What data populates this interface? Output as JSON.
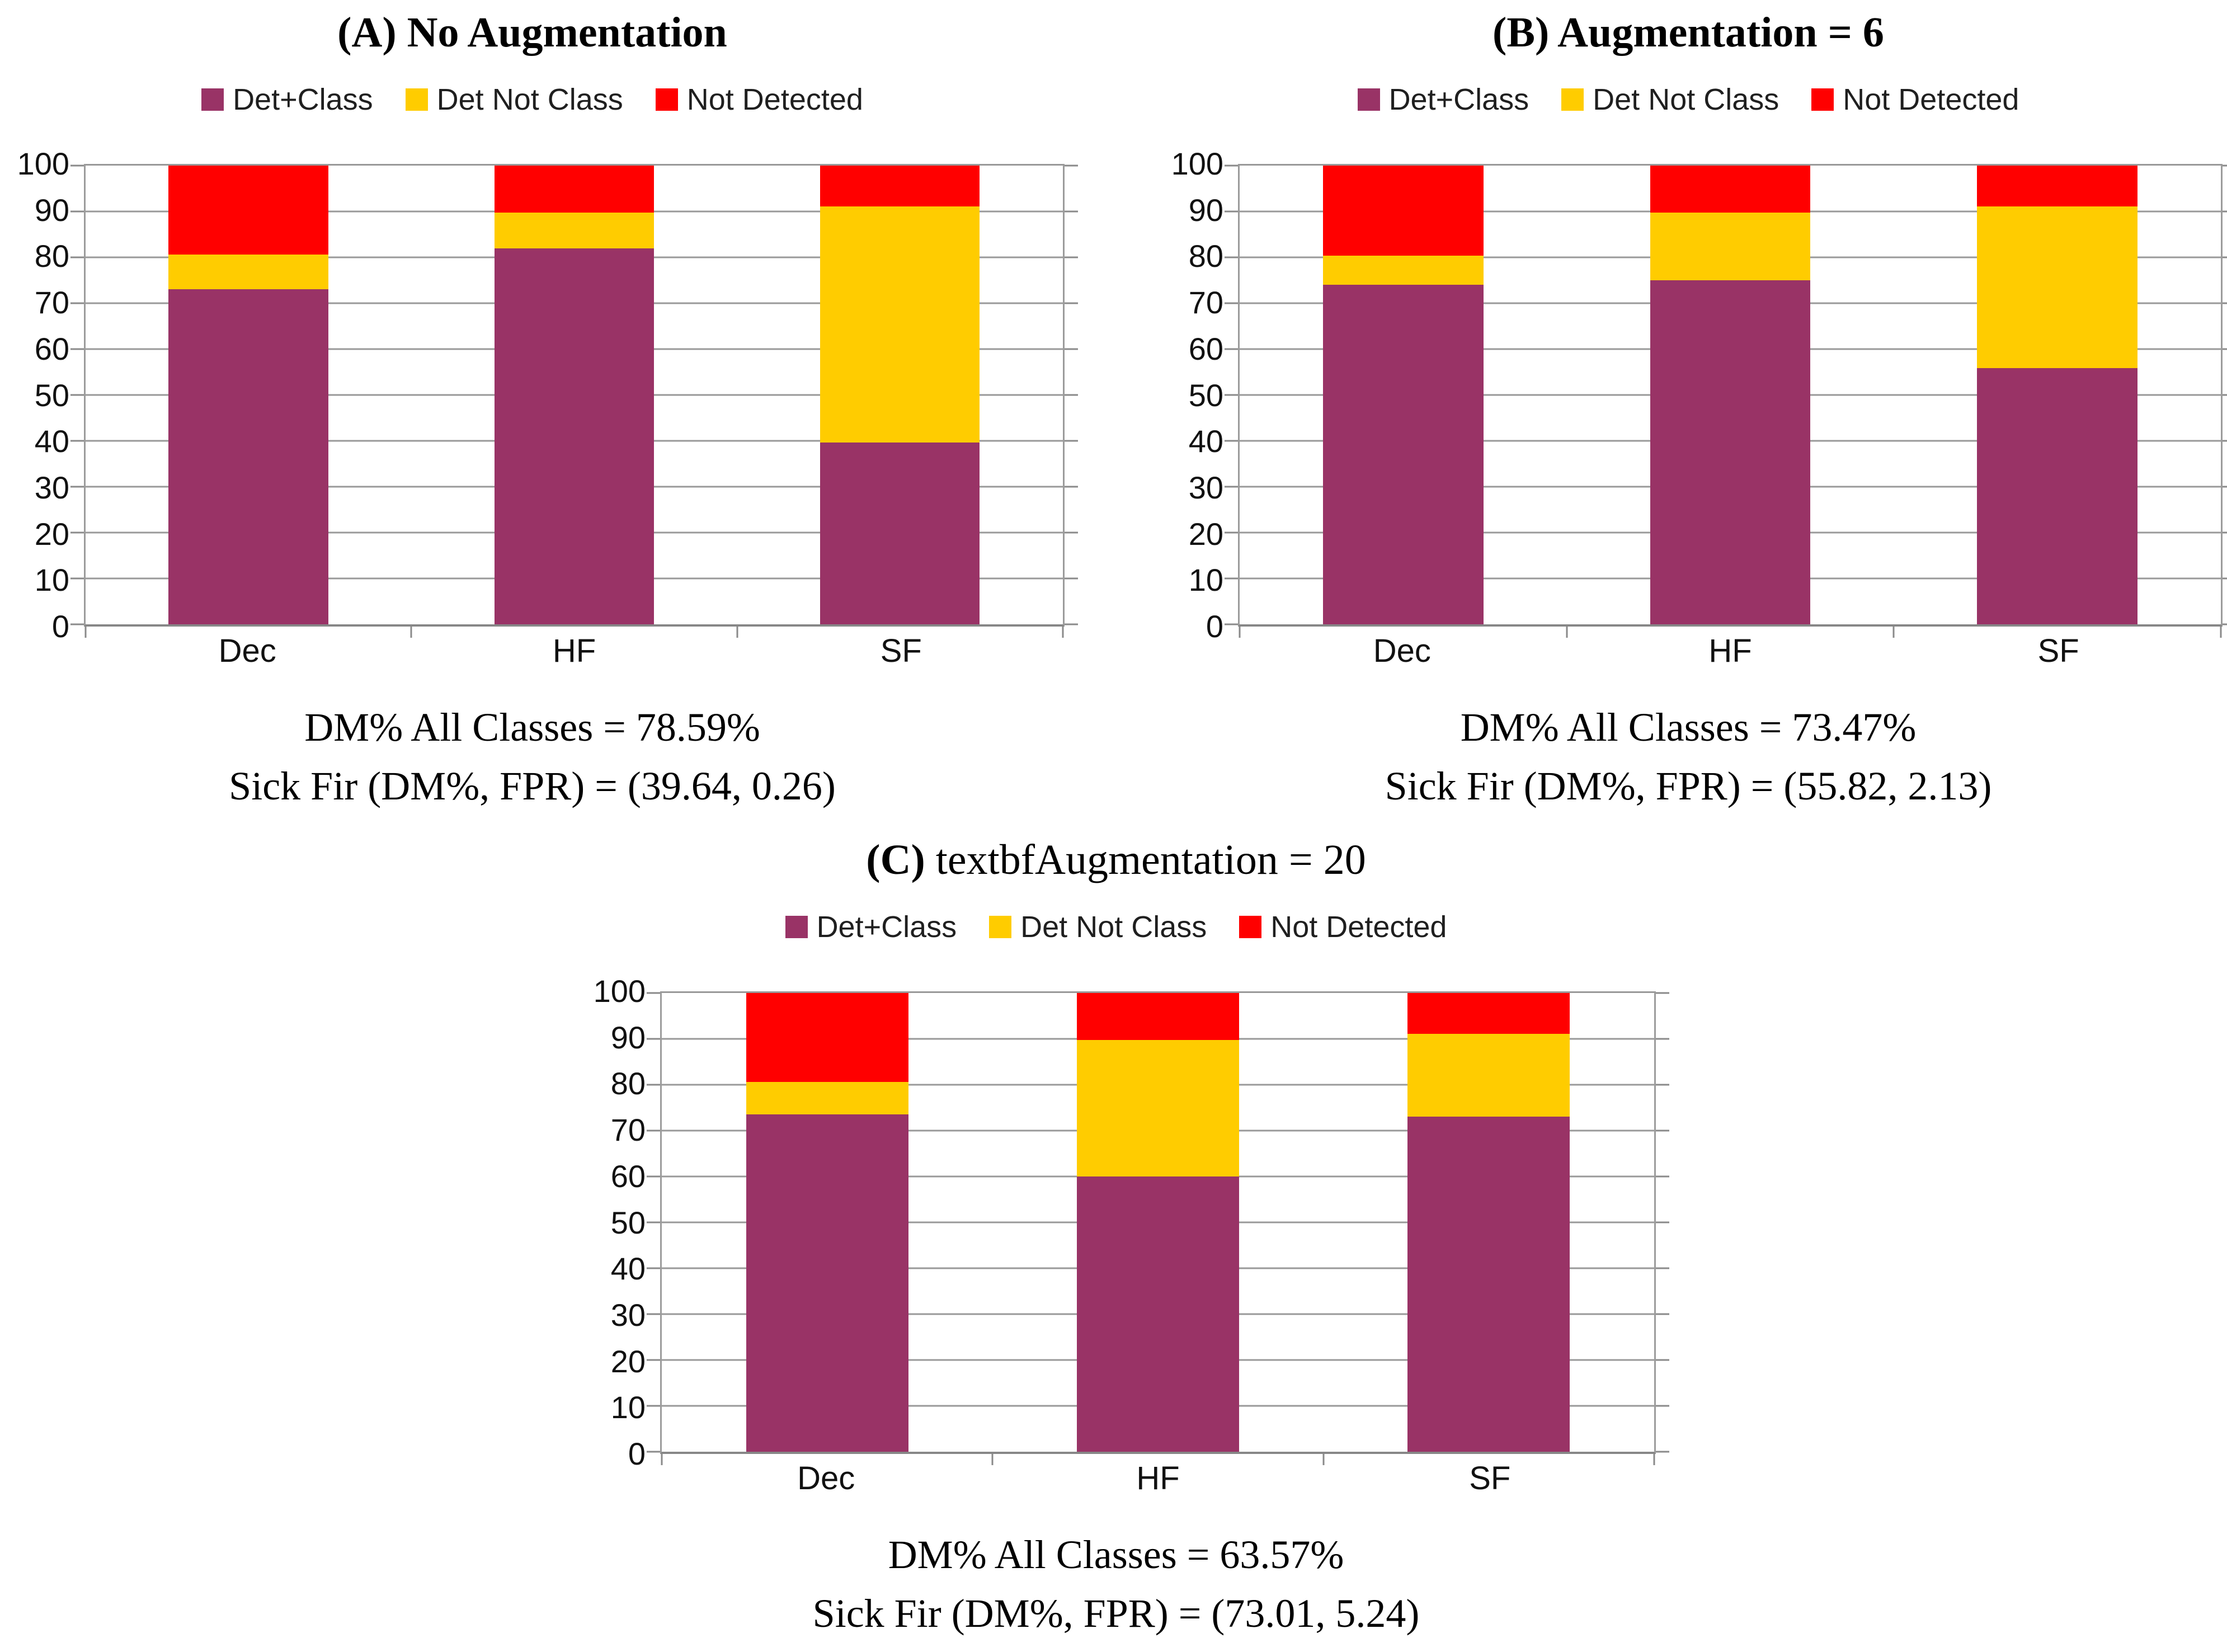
{
  "page": {
    "background": "#ffffff"
  },
  "legend_labels": [
    "Det+Class",
    "Det Not Class",
    "Not Detected"
  ],
  "colors": {
    "det_class": "#993366",
    "det_not_class": "#FFCC00",
    "not_detected": "#FF0000",
    "gridline": "#999999",
    "axis": "#8a8a8a",
    "text": "#111111"
  },
  "chart_data": [
    {
      "id": "A",
      "type": "bar",
      "subtype": "stacked-100",
      "title_bold": "(A) No Augmentation",
      "title_regular": "",
      "categories": [
        "Dec",
        "HF",
        "SF"
      ],
      "series": [
        {
          "name": "Det+Class",
          "color": "#993366",
          "values": [
            73,
            82,
            39.64
          ]
        },
        {
          "name": "Det Not Class",
          "color": "#FFCC00",
          "values": [
            7.6,
            7.8,
            51.46
          ]
        },
        {
          "name": "Not Detected",
          "color": "#FF0000",
          "values": [
            19.4,
            10.2,
            8.9
          ]
        }
      ],
      "xlabel": "",
      "ylabel": "",
      "ylim": [
        0,
        100
      ],
      "yticks": [
        0,
        10,
        20,
        30,
        40,
        50,
        60,
        70,
        80,
        90,
        100
      ],
      "grid": true,
      "legend_position": "top",
      "caption_line1": "DM% All Classes = 78.59%",
      "caption_line2": "Sick Fir (DM%, FPR) = (39.64, 0.26)"
    },
    {
      "id": "B",
      "type": "bar",
      "subtype": "stacked-100",
      "title_bold": "(B) Augmentation = 6",
      "title_regular": "",
      "categories": [
        "Dec",
        "HF",
        "SF"
      ],
      "series": [
        {
          "name": "Det+Class",
          "color": "#993366",
          "values": [
            74,
            75,
            55.82
          ]
        },
        {
          "name": "Det Not Class",
          "color": "#FFCC00",
          "values": [
            6.4,
            14.8,
            35.28
          ]
        },
        {
          "name": "Not Detected",
          "color": "#FF0000",
          "values": [
            19.6,
            10.2,
            8.9
          ]
        }
      ],
      "xlabel": "",
      "ylabel": "",
      "ylim": [
        0,
        100
      ],
      "yticks": [
        0,
        10,
        20,
        30,
        40,
        50,
        60,
        70,
        80,
        90,
        100
      ],
      "grid": true,
      "legend_position": "top",
      "caption_line1": "DM% All Classes = 73.47%",
      "caption_line2": "Sick Fir (DM%, FPR) = (55.82, 2.13)"
    },
    {
      "id": "C",
      "type": "bar",
      "subtype": "stacked-100",
      "title_bold": "(C)",
      "title_regular": " textbfAugmentation = 20",
      "categories": [
        "Dec",
        "HF",
        "SF"
      ],
      "series": [
        {
          "name": "Det+Class",
          "color": "#993366",
          "values": [
            73.5,
            60,
            73.01
          ]
        },
        {
          "name": "Det Not Class",
          "color": "#FFCC00",
          "values": [
            7.1,
            29.8,
            18.09
          ]
        },
        {
          "name": "Not Detected",
          "color": "#FF0000",
          "values": [
            19.4,
            10.2,
            8.9
          ]
        }
      ],
      "xlabel": "",
      "ylabel": "",
      "ylim": [
        0,
        100
      ],
      "yticks": [
        0,
        10,
        20,
        30,
        40,
        50,
        60,
        70,
        80,
        90,
        100
      ],
      "grid": true,
      "legend_position": "top",
      "caption_line1": "DM% All Classes = 63.57%",
      "caption_line2": "Sick Fir (DM%, FPR) = (73.01, 5.24)"
    }
  ]
}
